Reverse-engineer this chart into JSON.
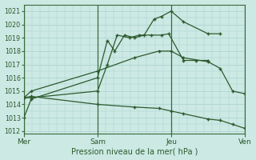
{
  "background_color": "#cce9e4",
  "grid_color": "#b8ddd8",
  "line_color": "#2d5a2d",
  "xlabel": "Pression niveau de la mer( hPa )",
  "xlim": [
    0,
    9.0
  ],
  "ylim": [
    1011.8,
    1021.5
  ],
  "yticks": [
    1012,
    1013,
    1014,
    1015,
    1016,
    1017,
    1018,
    1019,
    1020,
    1021
  ],
  "day_positions": [
    0,
    3,
    6,
    9
  ],
  "day_labels": [
    "Mer",
    "Sam",
    "Jeu",
    "Ven"
  ],
  "lines": [
    {
      "x": [
        0.0,
        0.3,
        3.0,
        3.4,
        3.7,
        4.1,
        4.5,
        4.9,
        5.3,
        5.6,
        6.0,
        6.5,
        7.5,
        8.0
      ],
      "y": [
        1013.0,
        1014.4,
        1016.0,
        1018.8,
        1018.0,
        1019.2,
        1019.0,
        1019.2,
        1020.4,
        1020.6,
        1021.0,
        1020.2,
        1019.3,
        1019.3
      ]
    },
    {
      "x": [
        0.0,
        0.3,
        3.0,
        3.4,
        3.8,
        4.3,
        4.7,
        5.2,
        5.6,
        5.9,
        6.5,
        7.0,
        7.5
      ],
      "y": [
        1014.5,
        1014.5,
        1015.0,
        1017.0,
        1019.2,
        1019.0,
        1019.2,
        1019.2,
        1019.2,
        1019.3,
        1017.3,
        1017.3,
        1017.3
      ]
    },
    {
      "x": [
        0.0,
        0.3,
        3.0,
        4.5,
        5.5,
        6.0,
        6.5,
        7.5,
        8.0,
        8.5,
        9.0
      ],
      "y": [
        1014.5,
        1015.0,
        1016.5,
        1017.5,
        1018.0,
        1018.0,
        1017.5,
        1017.2,
        1016.7,
        1015.0,
        1014.8
      ]
    },
    {
      "x": [
        0.0,
        0.3,
        3.0,
        4.5,
        5.5,
        6.0,
        6.5,
        7.5,
        8.0,
        8.5,
        9.0
      ],
      "y": [
        1014.5,
        1014.6,
        1014.0,
        1013.8,
        1013.7,
        1013.5,
        1013.3,
        1012.9,
        1012.8,
        1012.5,
        1012.2
      ]
    }
  ]
}
